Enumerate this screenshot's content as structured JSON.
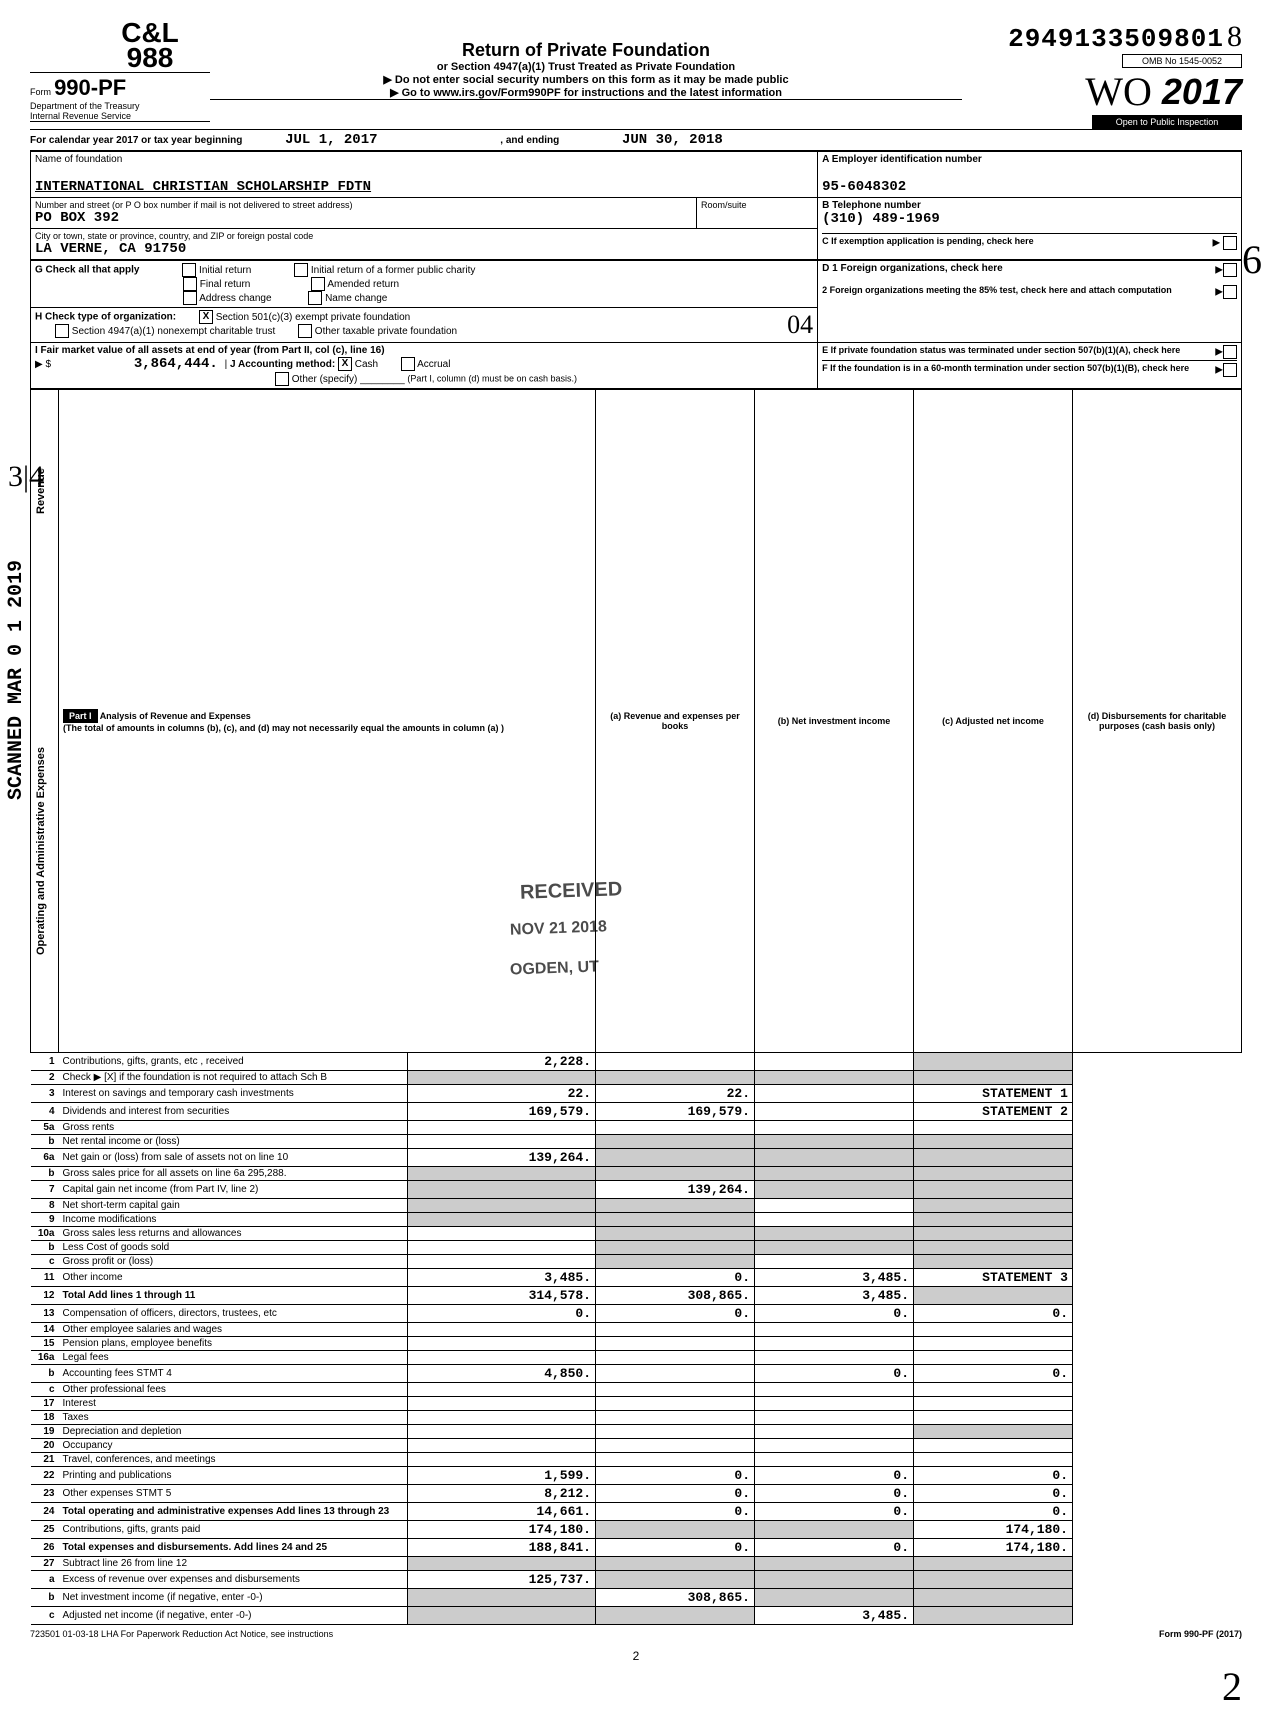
{
  "header": {
    "dln": "2949133509801",
    "page_hand": "8",
    "omb": "OMB No  1545-0052",
    "form_no": "990-PF",
    "form_prefix": "Form",
    "dept": "Department of the Treasury",
    "irs": "Internal Revenue Service",
    "title": "Return of Private Foundation",
    "subtitle1": "or Section 4947(a)(1) Trust Treated as Private Foundation",
    "subtitle2": "▶ Do not enter social security numbers on this form as it may be made public",
    "subtitle3": "▶ Go to www.irs.gov/Form990PF for instructions and the latest information",
    "year": "2017",
    "inspection": "Open to Public Inspection",
    "cal_year_label": "For calendar year 2017 or tax year beginning",
    "begin_date": "JUL 1, 2017",
    "ending_label": ", and ending",
    "end_date": "JUN 30, 2018"
  },
  "org": {
    "name_label": "Name of foundation",
    "name": "INTERNATIONAL CHRISTIAN SCHOLARSHIP FDTN",
    "ein_label": "A  Employer identification number",
    "ein": "95-6048302",
    "addr_label": "Number and street (or P O  box number if mail is not delivered to street address)",
    "addr": "PO BOX 392",
    "room_label": "Room/suite",
    "phone_label": "B  Telephone number",
    "phone": "(310) 489-1969",
    "city_label": "City or town, state or province, country, and ZIP or foreign postal code",
    "city": "LA VERNE, CA  91750",
    "c_label": "C  If exemption application is pending, check here"
  },
  "checks": {
    "g_label": "G  Check all that apply",
    "initial": "Initial return",
    "initial_former": "Initial return of a former public charity",
    "final": "Final return",
    "amended": "Amended return",
    "address": "Address change",
    "name_change": "Name change",
    "d1": "D 1  Foreign organizations, check here",
    "d2": "2  Foreign organizations meeting the 85% test, check here and attach computation",
    "h_label": "H  Check type of organization:",
    "h_501c3": "Section 501(c)(3) exempt private foundation",
    "h_4947": "Section 4947(a)(1) nonexempt charitable trust",
    "h_other": "Other taxable private foundation",
    "e_label": "E  If private foundation status was terminated under section 507(b)(1)(A), check here",
    "i_label": "I  Fair market value of all assets at end of year (from Part II, col  (c), line 16)",
    "i_value": "3,864,444.",
    "j_label": "J  Accounting method:",
    "j_cash": "Cash",
    "j_accrual": "Accrual",
    "j_other": "Other (specify)",
    "j_note": "(Part I, column (d) must be on cash basis.)",
    "f_label": "F  If the foundation is in a 60-month termination under section 507(b)(1)(B), check here"
  },
  "part1": {
    "title": "Part I",
    "heading": "Analysis of Revenue and Expenses",
    "note": "(The total of amounts in columns (b), (c), and (d) may not necessarily equal the amounts in column (a) )",
    "col_a": "(a) Revenue and expenses per books",
    "col_b": "(b) Net investment income",
    "col_c": "(c) Adjusted net income",
    "col_d": "(d) Disbursements for charitable purposes (cash basis only)"
  },
  "rows": [
    {
      "n": "1",
      "label": "Contributions, gifts, grants, etc , received",
      "a": "2,228.",
      "b": "",
      "c": "",
      "d": "",
      "d_shade": true
    },
    {
      "n": "2",
      "label": "Check ▶ [X] if the foundation is not required to attach Sch  B",
      "a": "",
      "b": "",
      "c": "",
      "d": "",
      "all_shade": true
    },
    {
      "n": "3",
      "label": "Interest on savings and temporary cash investments",
      "a": "22.",
      "b": "22.",
      "c": "",
      "d": "STATEMENT  1"
    },
    {
      "n": "4",
      "label": "Dividends and interest from securities",
      "a": "169,579.",
      "b": "169,579.",
      "c": "",
      "d": "STATEMENT  2"
    },
    {
      "n": "5a",
      "label": "Gross rents",
      "a": "",
      "b": "",
      "c": "",
      "d": ""
    },
    {
      "n": "b",
      "label": "Net rental income or (loss)",
      "a": "",
      "b": "",
      "c": "",
      "d": "",
      "bcd_shade": true
    },
    {
      "n": "6a",
      "label": "Net gain or (loss) from sale of assets not on line 10",
      "a": "139,264.",
      "b": "",
      "c": "",
      "d": "",
      "bcd_shade": true
    },
    {
      "n": "b",
      "label": "Gross sales price for all assets on line 6a         295,288.",
      "a": "",
      "b": "",
      "c": "",
      "d": "",
      "all_shade": true
    },
    {
      "n": "7",
      "label": "Capital gain net income (from Part IV, line 2)",
      "a": "",
      "b": "139,264.",
      "c": "",
      "d": "",
      "a_shade": true,
      "cd_shade": true
    },
    {
      "n": "8",
      "label": "Net short-term capital gain",
      "a": "",
      "b": "",
      "c": "",
      "d": "",
      "ab_shade": true,
      "d_shade": true
    },
    {
      "n": "9",
      "label": "Income modifications",
      "a": "",
      "b": "",
      "c": "",
      "d": "",
      "ab_shade": true,
      "d_shade": true
    },
    {
      "n": "10a",
      "label": "Gross sales less returns and allowances",
      "a": "",
      "b": "",
      "c": "",
      "d": "",
      "bcd_shade": true
    },
    {
      "n": "b",
      "label": "Less  Cost of goods sold",
      "a": "",
      "b": "",
      "c": "",
      "d": "",
      "bcd_shade": true
    },
    {
      "n": "c",
      "label": "Gross profit or (loss)",
      "a": "",
      "b": "",
      "c": "",
      "d": "",
      "b_shade": true,
      "d_shade": true
    },
    {
      "n": "11",
      "label": "Other income",
      "a": "3,485.",
      "b": "0.",
      "c": "3,485.",
      "d": "STATEMENT  3"
    },
    {
      "n": "12",
      "label": "Total  Add lines 1 through 11",
      "a": "314,578.",
      "b": "308,865.",
      "c": "3,485.",
      "d": "",
      "bold": true,
      "d_shade": true
    },
    {
      "n": "13",
      "label": "Compensation of officers, directors, trustees, etc",
      "a": "0.",
      "b": "0.",
      "c": "0.",
      "d": "0."
    },
    {
      "n": "14",
      "label": "Other employee salaries and wages",
      "a": "",
      "b": "",
      "c": "",
      "d": ""
    },
    {
      "n": "15",
      "label": "Pension plans, employee benefits",
      "a": "",
      "b": "",
      "c": "",
      "d": ""
    },
    {
      "n": "16a",
      "label": "Legal fees",
      "a": "",
      "b": "",
      "c": "",
      "d": ""
    },
    {
      "n": "b",
      "label": "Accounting fees              STMT  4",
      "a": "4,850.",
      "b": "",
      "c": "0.",
      "d": "0."
    },
    {
      "n": "c",
      "label": "Other professional fees",
      "a": "",
      "b": "",
      "c": "",
      "d": ""
    },
    {
      "n": "17",
      "label": "Interest",
      "a": "",
      "b": "",
      "c": "",
      "d": ""
    },
    {
      "n": "18",
      "label": "Taxes",
      "a": "",
      "b": "",
      "c": "",
      "d": ""
    },
    {
      "n": "19",
      "label": "Depreciation and depletion",
      "a": "",
      "b": "",
      "c": "",
      "d": "",
      "d_shade": true
    },
    {
      "n": "20",
      "label": "Occupancy",
      "a": "",
      "b": "",
      "c": "",
      "d": ""
    },
    {
      "n": "21",
      "label": "Travel, conferences, and meetings",
      "a": "",
      "b": "",
      "c": "",
      "d": ""
    },
    {
      "n": "22",
      "label": "Printing and publications",
      "a": "1,599.",
      "b": "0.",
      "c": "0.",
      "d": "0."
    },
    {
      "n": "23",
      "label": "Other expenses              STMT  5",
      "a": "8,212.",
      "b": "0.",
      "c": "0.",
      "d": "0."
    },
    {
      "n": "24",
      "label": "Total operating and administrative expenses  Add lines 13 through 23",
      "a": "14,661.",
      "b": "0.",
      "c": "0.",
      "d": "0.",
      "bold": true
    },
    {
      "n": "25",
      "label": "Contributions, gifts, grants paid",
      "a": "174,180.",
      "b": "",
      "c": "",
      "d": "174,180.",
      "bc_shade": true
    },
    {
      "n": "26",
      "label": "Total expenses and disbursements. Add lines 24 and 25",
      "a": "188,841.",
      "b": "0.",
      "c": "0.",
      "d": "174,180.",
      "bold": true
    },
    {
      "n": "27",
      "label": "Subtract line 26 from line 12",
      "a": "",
      "b": "",
      "c": "",
      "d": "",
      "all_shade": true
    },
    {
      "n": "a",
      "label": "Excess of revenue over expenses and disbursements",
      "a": "125,737.",
      "b": "",
      "c": "",
      "d": "",
      "bcd_shade": true
    },
    {
      "n": "b",
      "label": "Net investment income (if negative, enter -0-)",
      "a": "",
      "b": "308,865.",
      "c": "",
      "d": "",
      "a_shade": true,
      "cd_shade": true
    },
    {
      "n": "c",
      "label": "Adjusted net income (if negative, enter -0-)",
      "a": "",
      "b": "",
      "c": "3,485.",
      "d": "",
      "ab_shade": true,
      "d_shade": true
    }
  ],
  "side_labels": {
    "revenue": "Revenue",
    "expenses": "Operating and Administrative Expenses"
  },
  "stamps": {
    "received": "RECEIVED",
    "date": "NOV 21 2018",
    "ogden": "OGDEN, UT",
    "scanned": "SCANNED MAR 0 1 2019",
    "hand_04": "04",
    "hand_6": "6",
    "hand_314": "3|4"
  },
  "footer": {
    "left": "723501  01-03-18    LHA   For Paperwork Reduction Act Notice, see instructions",
    "right": "Form 990-PF (2017)",
    "page": "2"
  }
}
